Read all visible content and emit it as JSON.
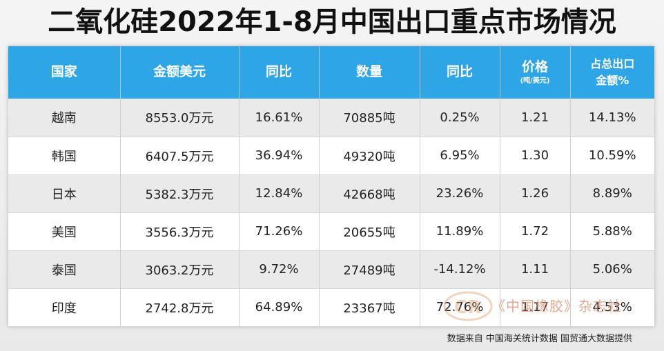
{
  "title": "二氧化硅2022年1-8月中国出口重点市场情况",
  "source_note": "数据来自 中国海关统计数据 国贸通大数据提供",
  "watermark": "《中国橡胶》杂志社",
  "colors": {
    "header_bg": "#2ea6e6",
    "row_alt": "#eaeaea",
    "row": "#ffffff"
  },
  "chart_data": {
    "type": "table",
    "columns": [
      {
        "label": "国家"
      },
      {
        "label": "金额美元"
      },
      {
        "label": "同比"
      },
      {
        "label": "数量"
      },
      {
        "label": "同比"
      },
      {
        "label": "价格",
        "sub": "(吨/美元)"
      },
      {
        "label": "占总出口",
        "label2": "金额%"
      }
    ],
    "rows": [
      [
        "越南",
        "8553.0万元",
        "16.61%",
        "70885吨",
        "0.25%",
        "1.21",
        "14.13%"
      ],
      [
        "韩国",
        "6407.5万元",
        "36.94%",
        "49320吨",
        "6.95%",
        "1.30",
        "10.59%"
      ],
      [
        "日本",
        "5382.3万元",
        "12.84%",
        "42668吨",
        "23.26%",
        "1.26",
        "8.89%"
      ],
      [
        "美国",
        "3556.3万元",
        "71.26%",
        "20655吨",
        "11.89%",
        "1.72",
        "5.88%"
      ],
      [
        "泰国",
        "3063.2万元",
        "9.72%",
        "27489吨",
        "-14.12%",
        "1.11",
        "5.06%"
      ],
      [
        "印度",
        "2742.8万元",
        "64.89%",
        "23367吨",
        "72.76%",
        "1.17",
        "4.53%"
      ]
    ]
  }
}
